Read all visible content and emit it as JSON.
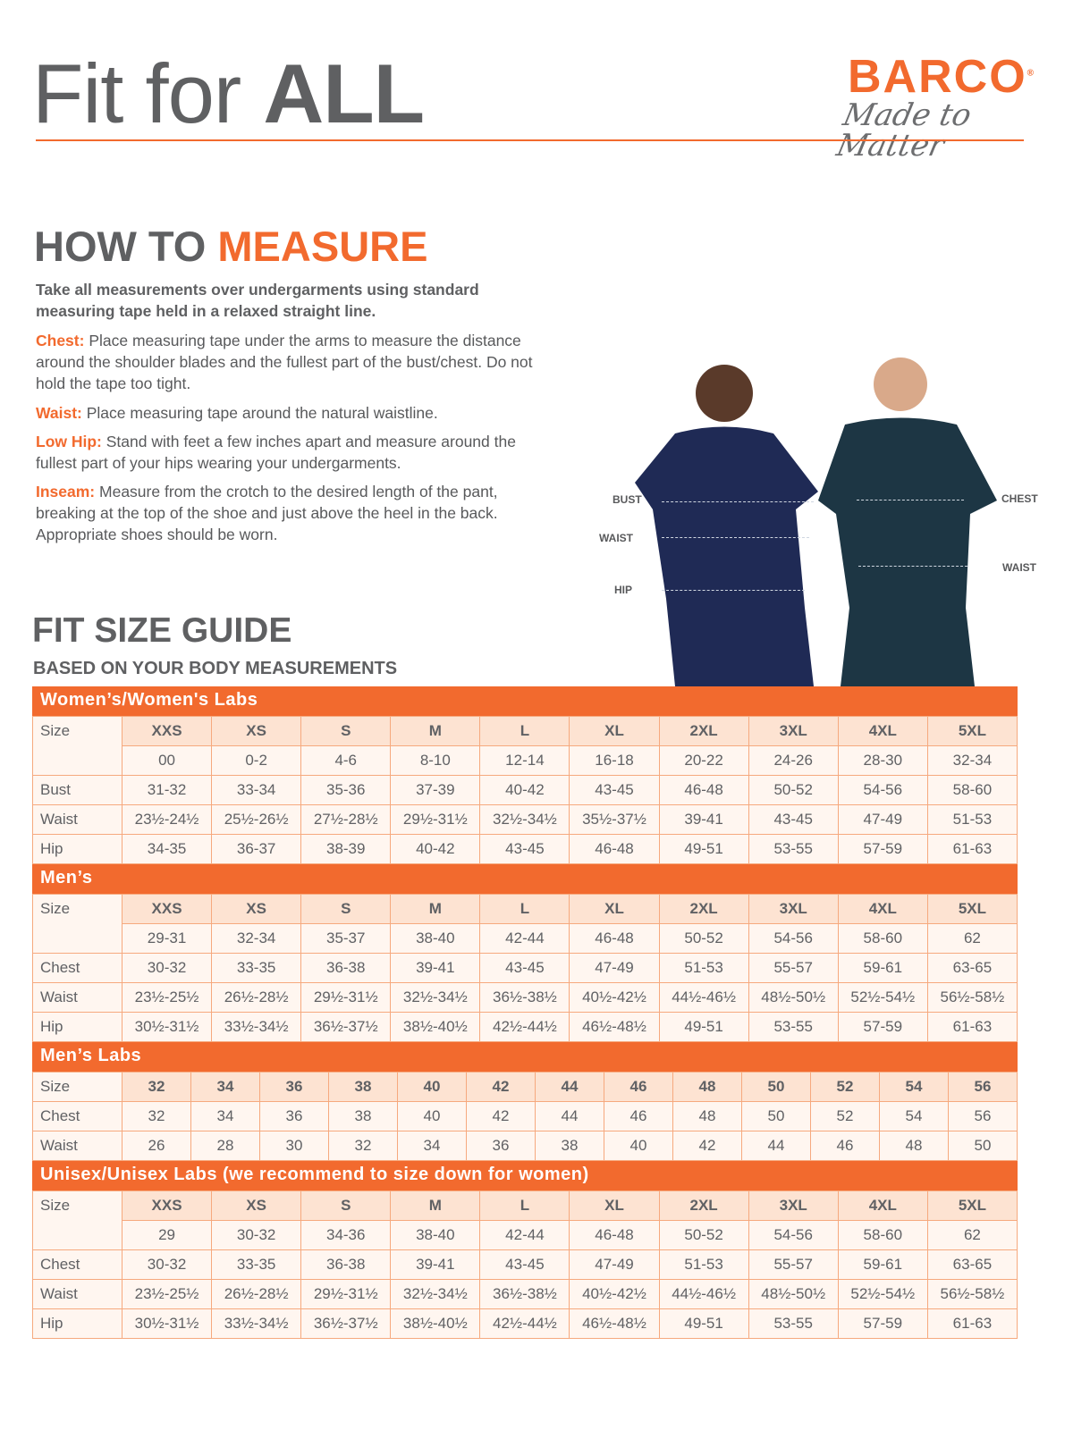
{
  "header": {
    "title_light": "Fit for ",
    "title_bold": "ALL",
    "brand": "BARCO",
    "registered": "®",
    "tagline": "Made to Matter",
    "accent": "#f26a2e"
  },
  "measure": {
    "title_a": "HOW TO ",
    "title_b": "MEASURE",
    "intro": "Take all measurements over undergarments using standard measuring tape held in a relaxed straight line.",
    "items": [
      {
        "term": "Chest:",
        "text": "Place measuring tape under the arms to measure the distance around the shoulder blades and the fullest part of the bust/chest. Do not hold the tape too tight."
      },
      {
        "term": "Waist:",
        "text": "Place measuring tape around the natural waistline."
      },
      {
        "term": "Low Hip:",
        "text": "Stand with feet a few inches apart and measure around the fullest part of your hips wearing your undergarments."
      },
      {
        "term": "Inseam:",
        "text": "Measure from the crotch to the desired length of the pant, breaking at the top of the shoe and just above the heel in the back. Appropriate shoes should be worn."
      }
    ],
    "figure_labels": {
      "bust": "BUST",
      "waist_w": "WAIST",
      "hip": "HIP",
      "chest": "CHEST",
      "waist_m": "WAIST"
    }
  },
  "guide": {
    "title": "FIT SIZE GUIDE",
    "subtitle": "BASED ON YOUR BODY MEASUREMENTS"
  },
  "tables": [
    {
      "title": "Women’s/Women's Labs",
      "size_label": "Size",
      "sizes": [
        "XXS",
        "XS",
        "S",
        "M",
        "L",
        "XL",
        "2XL",
        "3XL",
        "4XL",
        "5XL"
      ],
      "numeric": [
        "00",
        "0-2",
        "4-6",
        "8-10",
        "12-14",
        "16-18",
        "20-22",
        "24-26",
        "28-30",
        "32-34"
      ],
      "rows": [
        {
          "label": "Bust",
          "values": [
            "31-32",
            "33-34",
            "35-36",
            "37-39",
            "40-42",
            "43-45",
            "46-48",
            "50-52",
            "54-56",
            "58-60"
          ]
        },
        {
          "label": "Waist",
          "values": [
            "23½-24½",
            "25½-26½",
            "27½-28½",
            "29½-31½",
            "32½-34½",
            "35½-37½",
            "39-41",
            "43-45",
            "47-49",
            "51-53"
          ]
        },
        {
          "label": "Hip",
          "values": [
            "34-35",
            "36-37",
            "38-39",
            "40-42",
            "43-45",
            "46-48",
            "49-51",
            "53-55",
            "57-59",
            "61-63"
          ]
        }
      ]
    },
    {
      "title": "Men’s",
      "size_label": "Size",
      "sizes": [
        "XXS",
        "XS",
        "S",
        "M",
        "L",
        "XL",
        "2XL",
        "3XL",
        "4XL",
        "5XL"
      ],
      "numeric": [
        "29-31",
        "32-34",
        "35-37",
        "38-40",
        "42-44",
        "46-48",
        "50-52",
        "54-56",
        "58-60",
        "62"
      ],
      "rows": [
        {
          "label": "Chest",
          "values": [
            "30-32",
            "33-35",
            "36-38",
            "39-41",
            "43-45",
            "47-49",
            "51-53",
            "55-57",
            "59-61",
            "63-65"
          ]
        },
        {
          "label": "Waist",
          "values": [
            "23½-25½",
            "26½-28½",
            "29½-31½",
            "32½-34½",
            "36½-38½",
            "40½-42½",
            "44½-46½",
            "48½-50½",
            "52½-54½",
            "56½-58½"
          ]
        },
        {
          "label": "Hip",
          "values": [
            "30½-31½",
            "33½-34½",
            "36½-37½",
            "38½-40½",
            "42½-44½",
            "46½-48½",
            "49-51",
            "53-55",
            "57-59",
            "61-63"
          ]
        }
      ]
    },
    {
      "title": "Men’s Labs",
      "size_label": "Size",
      "sizes": [
        "32",
        "34",
        "36",
        "38",
        "40",
        "42",
        "44",
        "46",
        "48",
        "50",
        "52",
        "54",
        "56"
      ],
      "rows": [
        {
          "label": "Chest",
          "values": [
            "32",
            "34",
            "36",
            "38",
            "40",
            "42",
            "44",
            "46",
            "48",
            "50",
            "52",
            "54",
            "56"
          ]
        },
        {
          "label": "Waist",
          "values": [
            "26",
            "28",
            "30",
            "32",
            "34",
            "36",
            "38",
            "40",
            "42",
            "44",
            "46",
            "48",
            "50"
          ]
        }
      ]
    },
    {
      "title": "Unisex/Unisex Labs (we recommend to size down for women)",
      "size_label": "Size",
      "sizes": [
        "XXS",
        "XS",
        "S",
        "M",
        "L",
        "XL",
        "2XL",
        "3XL",
        "4XL",
        "5XL"
      ],
      "numeric": [
        "29",
        "30-32",
        "34-36",
        "38-40",
        "42-44",
        "46-48",
        "50-52",
        "54-56",
        "58-60",
        "62"
      ],
      "rows": [
        {
          "label": "Chest",
          "values": [
            "30-32",
            "33-35",
            "36-38",
            "39-41",
            "43-45",
            "47-49",
            "51-53",
            "55-57",
            "59-61",
            "63-65"
          ]
        },
        {
          "label": "Waist",
          "values": [
            "23½-25½",
            "26½-28½",
            "29½-31½",
            "32½-34½",
            "36½-38½",
            "40½-42½",
            "44½-46½",
            "48½-50½",
            "52½-54½",
            "56½-58½"
          ]
        },
        {
          "label": "Hip",
          "values": [
            "30½-31½",
            "33½-34½",
            "36½-37½",
            "38½-40½",
            "42½-44½",
            "46½-48½",
            "49-51",
            "53-55",
            "57-59",
            "61-63"
          ]
        }
      ]
    }
  ]
}
